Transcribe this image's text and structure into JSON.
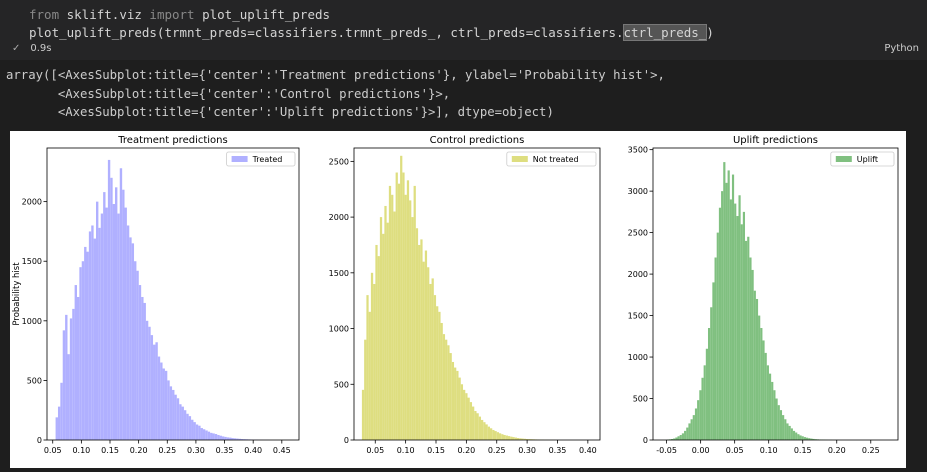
{
  "cell": {
    "code_line1_kw1": "from",
    "code_line1_mod": " sklift.viz ",
    "code_line1_kw2": "import",
    "code_line1_name": " plot_uplift_preds",
    "code_line2_pre": "plot_uplift_preds(trmnt_preds=classifiers.trmnt_preds_, ctrl_preds=classifiers.",
    "code_line2_hl": "ctrl_preds_",
    "code_line2_post": ")",
    "exec_time": "0.9s",
    "language": "Python",
    "check_icon": "check-icon"
  },
  "output": {
    "line1": "array([<AxesSubplot:title={'center':'Treatment predictions'}, ylabel='Probability hist'>,",
    "line2": "       <AxesSubplot:title={'center':'Control predictions'}>,",
    "line3": "       <AxesSubplot:title={'center':'Uplift predictions'}>], dtype=object)"
  },
  "chart_data": [
    {
      "type": "bar",
      "title": "Treatment predictions",
      "ylabel": "Probability hist",
      "xlabel": "",
      "legend": "Treated",
      "legend_position": "top-right",
      "color": "#b0b0ff",
      "xlim": [
        0.04,
        0.48
      ],
      "ylim": [
        0,
        2450
      ],
      "xticks": [
        0.05,
        0.1,
        0.15,
        0.2,
        0.25,
        0.3,
        0.35,
        0.4,
        0.45
      ],
      "xtick_labels": [
        "0.05",
        "0.10",
        "0.15",
        "0.20",
        "0.25",
        "0.30",
        "0.35",
        "0.40",
        "0.45"
      ],
      "yticks": [
        0,
        500,
        1000,
        1500,
        2000
      ],
      "ytick_labels": [
        "0",
        "500",
        "1000",
        "1500",
        "2000"
      ],
      "bin_start": 0.055,
      "bin_width": 0.00415,
      "values": [
        190,
        280,
        480,
        920,
        1050,
        720,
        1020,
        1100,
        1300,
        1200,
        1450,
        1500,
        1620,
        1580,
        1750,
        1800,
        1690,
        2000,
        1780,
        1900,
        2080,
        1950,
        2350,
        2200,
        1980,
        2120,
        1900,
        2280,
        2100,
        1950,
        1800,
        1700,
        1650,
        1500,
        1420,
        1300,
        1200,
        1150,
        1000,
        950,
        880,
        800,
        820,
        700,
        650,
        600,
        580,
        500,
        450,
        420,
        380,
        350,
        300,
        280,
        250,
        220,
        200,
        170,
        150,
        130,
        120,
        100,
        90,
        80,
        70,
        60,
        55,
        50,
        42,
        36,
        30,
        26,
        22,
        20,
        16,
        14,
        12,
        10,
        8,
        7,
        6,
        5,
        4,
        3,
        3,
        2,
        2,
        1,
        1,
        1,
        0,
        0,
        0
      ]
    },
    {
      "type": "bar",
      "title": "Control predictions",
      "ylabel": "",
      "xlabel": "",
      "legend": "Not treated",
      "legend_position": "top-right",
      "color": "#dede80",
      "xlim": [
        0.015,
        0.42
      ],
      "ylim": [
        0,
        2620
      ],
      "xticks": [
        0.05,
        0.1,
        0.15,
        0.2,
        0.25,
        0.3,
        0.35,
        0.4
      ],
      "xtick_labels": [
        "0.05",
        "0.10",
        "0.15",
        "0.20",
        "0.25",
        "0.30",
        "0.35",
        "0.40"
      ],
      "yticks": [
        0,
        500,
        1000,
        1500,
        2000,
        2500
      ],
      "ytick_labels": [
        "0",
        "500",
        "1000",
        "1500",
        "2000",
        "2500"
      ],
      "bin_start": 0.028,
      "bin_width": 0.0037,
      "values": [
        450,
        900,
        1300,
        1150,
        1500,
        1400,
        1750,
        1650,
        2000,
        1850,
        2100,
        1950,
        2280,
        2200,
        2050,
        2400,
        2300,
        2550,
        2400,
        2200,
        2330,
        2150,
        2000,
        2280,
        1900,
        1750,
        1800,
        1600,
        1700,
        1550,
        1400,
        1450,
        1300,
        1200,
        1150,
        1050,
        950,
        900,
        850,
        780,
        700,
        650,
        620,
        560,
        500,
        450,
        420,
        380,
        340,
        300,
        260,
        240,
        210,
        180,
        160,
        140,
        120,
        105,
        90,
        80,
        70,
        60,
        52,
        45,
        40,
        35,
        30,
        26,
        22,
        18,
        15,
        13,
        11,
        9,
        8,
        7,
        6,
        5,
        4,
        3,
        3,
        2,
        2,
        1,
        1,
        1,
        0,
        0,
        0,
        0,
        0,
        0,
        0,
        0,
        0,
        0,
        0,
        0
      ]
    },
    {
      "type": "bar",
      "title": "Uplift predictions",
      "ylabel": "",
      "xlabel": "",
      "legend": "Uplift",
      "legend_position": "top-right",
      "color": "#80c080",
      "xlim": [
        -0.07,
        0.29
      ],
      "ylim": [
        0,
        3520
      ],
      "xticks": [
        -0.05,
        0.0,
        0.05,
        0.1,
        0.15,
        0.2,
        0.25
      ],
      "xtick_labels": [
        "-0.05",
        "0.00",
        "0.05",
        "0.10",
        "0.15",
        "0.20",
        "0.25"
      ],
      "yticks": [
        0,
        500,
        1000,
        1500,
        2000,
        2500,
        3000,
        3500
      ],
      "ytick_labels": [
        "0",
        "500",
        "1000",
        "1500",
        "2000",
        "2500",
        "3000",
        "3500"
      ],
      "bin_start": -0.05,
      "bin_width": 0.0032,
      "values": [
        5,
        8,
        12,
        18,
        30,
        45,
        60,
        80,
        110,
        150,
        200,
        250,
        300,
        380,
        480,
        600,
        750,
        900,
        1100,
        1350,
        1600,
        1900,
        2200,
        2500,
        2800,
        3000,
        3350,
        3100,
        3250,
        2900,
        3200,
        2850,
        2700,
        2950,
        2600,
        2750,
        2400,
        2450,
        2200,
        2050,
        1800,
        1700,
        1500,
        1350,
        1200,
        1050,
        900,
        800,
        700,
        600,
        500,
        420,
        360,
        300,
        250,
        200,
        170,
        140,
        110,
        90,
        70,
        55,
        45,
        35,
        28,
        22,
        17,
        13,
        10,
        8,
        6,
        5,
        4,
        3,
        2,
        2,
        1,
        1,
        1
      ]
    }
  ]
}
